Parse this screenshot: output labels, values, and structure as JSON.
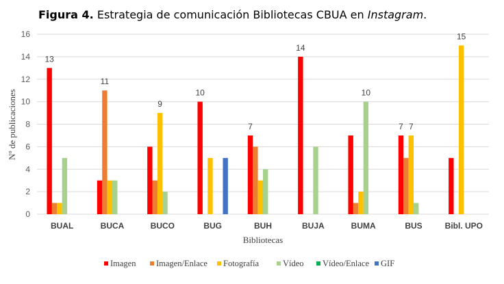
{
  "caption": {
    "label": "Figura 4.",
    "text": "Estrategia de comunicación Bibliotecas CBUA en",
    "italic": "Instagram",
    "end": "."
  },
  "chart_data": {
    "type": "bar",
    "xlabel": "Bibliotecas",
    "ylabel": "Nº de publicaciones",
    "ylim": [
      0,
      16
    ],
    "yticks": [
      0,
      2,
      4,
      6,
      8,
      10,
      12,
      14,
      16
    ],
    "grid": true,
    "legend_position": "bottom",
    "categories": [
      "BUAL",
      "BUCA",
      "BUCO",
      "BUG",
      "BUH",
      "BUJA",
      "BUMA",
      "BUS",
      "Bibl. UPO"
    ],
    "series": [
      {
        "name": "Imagen",
        "color": "#ff0000",
        "values": [
          13,
          3,
          6,
          10,
          7,
          14,
          7,
          7,
          5
        ]
      },
      {
        "name": "Imagen/Enlace",
        "color": "#ed7d31",
        "values": [
          1,
          11,
          3,
          0,
          6,
          0,
          1,
          5,
          0
        ]
      },
      {
        "name": "Fotografía",
        "color": "#ffc000",
        "values": [
          1,
          3,
          9,
          5,
          3,
          0,
          2,
          7,
          15
        ]
      },
      {
        "name": "Vídeo",
        "color": "#a9d18e",
        "values": [
          5,
          3,
          2,
          0,
          4,
          6,
          10,
          1,
          0
        ]
      },
      {
        "name": "Vídeo/Enlace",
        "color": "#00b050",
        "values": [
          0,
          0,
          0,
          0,
          0,
          0,
          0,
          0,
          0
        ]
      },
      {
        "name": "GIF",
        "color": "#4472c4",
        "values": [
          0,
          0,
          0,
          5,
          0,
          0,
          0,
          0,
          0
        ]
      }
    ],
    "data_labels": [
      {
        "category": "BUAL",
        "series": "Imagen",
        "text": "13"
      },
      {
        "category": "BUCA",
        "series": "Imagen/Enlace",
        "text": "11"
      },
      {
        "category": "BUCO",
        "series": "Fotografía",
        "text": "9"
      },
      {
        "category": "BUG",
        "series": "Imagen",
        "text": "10"
      },
      {
        "category": "BUH",
        "series": "Imagen",
        "text": "7"
      },
      {
        "category": "BUJA",
        "series": "Imagen",
        "text": "14"
      },
      {
        "category": "BUMA",
        "series": "Vídeo",
        "text": "10"
      },
      {
        "category": "BUS",
        "series": "Imagen",
        "text": "7"
      },
      {
        "category": "BUS",
        "series": "Fotografía",
        "text": "7"
      },
      {
        "category": "Bibl. UPO",
        "series": "Fotografía",
        "text": "15"
      }
    ]
  }
}
